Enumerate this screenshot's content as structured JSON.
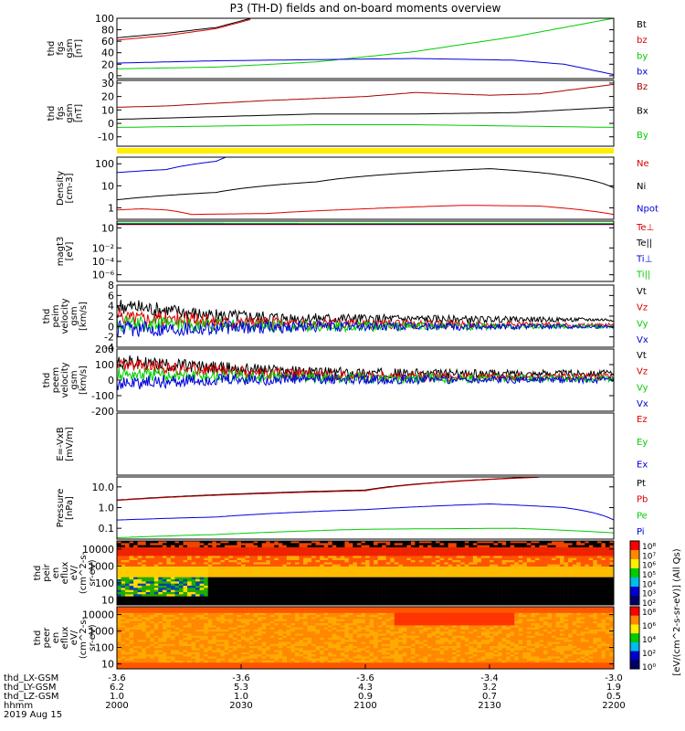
{
  "title": "P3 (TH-D) fields and on-board moments overview",
  "colors": {
    "black": "#000000",
    "red": "#dd0000",
    "green": "#00cc00",
    "blue": "#0000dd",
    "darkred": "#aa0000",
    "yellow": "#ffee00"
  },
  "chart_data": [
    {
      "type": "line",
      "ylabel": [
        "thd",
        "fgs",
        "gsm",
        "[nT]"
      ],
      "ylim": [
        -5,
        100
      ],
      "yticks": [
        0,
        20,
        40,
        60,
        80,
        100
      ],
      "log": false,
      "series": [
        {
          "name": "Bt",
          "color": "#000000",
          "x": [
            0,
            0.1,
            0.2,
            0.27,
            0.4,
            1.0
          ],
          "y": [
            66,
            74,
            84,
            100,
            null,
            null
          ]
        },
        {
          "name": "bz",
          "color": "#dd0000",
          "x": [
            0,
            0.1,
            0.2,
            0.27,
            0.4,
            1.0
          ],
          "y": [
            62,
            70,
            82,
            98,
            null,
            null
          ]
        },
        {
          "name": "by",
          "color": "#00cc00",
          "x": [
            0,
            0.2,
            0.4,
            0.6,
            0.8,
            1.0
          ],
          "y": [
            12,
            15,
            24,
            42,
            68,
            100
          ]
        },
        {
          "name": "bx",
          "color": "#0000dd",
          "x": [
            0,
            0.2,
            0.4,
            0.6,
            0.8,
            0.9,
            1.0
          ],
          "y": [
            22,
            26,
            28,
            30,
            27,
            20,
            2
          ]
        }
      ]
    },
    {
      "type": "line",
      "ylabel": [
        "thd",
        "fgs",
        "gsm",
        "[nT]"
      ],
      "ylim": [
        -17,
        32
      ],
      "yticks": [
        -10,
        0,
        10,
        20,
        30
      ],
      "log": false,
      "series": [
        {
          "name": "Bz",
          "color": "#aa0000",
          "x": [
            0,
            0.1,
            0.3,
            0.5,
            0.6,
            0.75,
            0.85,
            1.0
          ],
          "y": [
            12,
            13,
            17,
            20,
            23,
            21,
            22,
            29
          ]
        },
        {
          "name": "Bx",
          "color": "#000000",
          "x": [
            0,
            0.2,
            0.4,
            0.6,
            0.8,
            1.0
          ],
          "y": [
            3,
            5,
            7,
            7,
            8,
            12
          ]
        },
        {
          "name": "By",
          "color": "#00cc00",
          "x": [
            0,
            0.2,
            0.4,
            0.6,
            0.8,
            1.0
          ],
          "y": [
            -3,
            -2,
            -1,
            -1,
            -2,
            -3
          ]
        }
      ]
    },
    {
      "type": "line",
      "ylabel": [
        "Density",
        "[cm-3]"
      ],
      "ylim": [
        0.3,
        200
      ],
      "yticks": [
        1,
        10,
        100
      ],
      "log": true,
      "series": [
        {
          "name": "Ne",
          "color": "#dd0000",
          "x": [
            0,
            0.05,
            0.1,
            0.15,
            0.3,
            0.5,
            0.7,
            0.85,
            1.0
          ],
          "y": [
            0.8,
            0.9,
            0.8,
            0.5,
            0.55,
            0.9,
            1.3,
            1.2,
            0.5
          ]
        },
        {
          "name": "Ni",
          "color": "#000000",
          "x": [
            0,
            0.2,
            0.4,
            0.6,
            0.75,
            0.85,
            1.0
          ],
          "y": [
            2.3,
            5,
            15,
            40,
            60,
            40,
            8
          ]
        },
        {
          "name": "Npot",
          "color": "#0000dd",
          "x": [
            0,
            0.1,
            0.2,
            0.22
          ],
          "y": [
            40,
            55,
            130,
            200
          ]
        }
      ]
    },
    {
      "type": "line",
      "ylabel": [
        "magt3",
        "[eV]"
      ],
      "ylim": [
        1e-07,
        100
      ],
      "yticks": [
        10,
        0.01,
        0.0001,
        1e-06
      ],
      "ytick_labels": [
        "10",
        "10⁻²",
        "10⁻⁴",
        "10⁻⁶"
      ],
      "log": true,
      "series": [
        {
          "name": "Te⊥",
          "color": "#dd0000",
          "x": [
            0,
            0.5,
            1.0
          ],
          "y": [
            30,
            30,
            30
          ]
        },
        {
          "name": "Te||",
          "color": "#000000",
          "x": [
            0,
            0.5,
            1.0
          ],
          "y": [
            35,
            35,
            35
          ]
        },
        {
          "name": "Ti⊥",
          "color": "#0000dd",
          "x": [
            0,
            0.5,
            1.0
          ],
          "y": [
            45,
            40,
            40
          ]
        },
        {
          "name": "Ti||",
          "color": "#00cc00",
          "x": [
            0,
            0.5,
            1.0
          ],
          "y": [
            50,
            45,
            45
          ]
        }
      ]
    },
    {
      "type": "line",
      "ylabel": [
        "thd",
        "peim",
        "velocity",
        "gsm",
        "[km/s]"
      ],
      "ylim": [
        -4,
        8
      ],
      "yticks": [
        -4,
        -2,
        0,
        2,
        4,
        6,
        8
      ],
      "log": false,
      "noise": [
        1.6,
        0.3
      ],
      "series": [
        {
          "name": "Vt",
          "color": "#000000",
          "x": [
            0,
            0.2,
            0.4,
            1.0
          ],
          "y": [
            4,
            2,
            1.5,
            1.3
          ]
        },
        {
          "name": "Vz",
          "color": "#dd0000",
          "x": [
            0,
            0.2,
            0.4,
            1.0
          ],
          "y": [
            2,
            1,
            0.5,
            0.3
          ]
        },
        {
          "name": "Vy",
          "color": "#00cc00",
          "x": [
            0,
            0.2,
            0.4,
            1.0
          ],
          "y": [
            0.5,
            0.2,
            0,
            0
          ]
        },
        {
          "name": "Vx",
          "color": "#0000dd",
          "x": [
            0,
            0.2,
            0.4,
            1.0
          ],
          "y": [
            -0.5,
            -0.2,
            0,
            0
          ]
        }
      ]
    },
    {
      "type": "line",
      "ylabel": [
        "thd",
        "peem",
        "velocity",
        "gsm",
        "[km/s]"
      ],
      "ylim": [
        -200,
        200
      ],
      "yticks": [
        -200,
        -100,
        0,
        100,
        200
      ],
      "log": false,
      "noise": [
        45,
        20
      ],
      "series": [
        {
          "name": "Vt",
          "color": "#000000",
          "x": [
            0,
            0.2,
            0.4,
            0.7,
            1.0
          ],
          "y": [
            120,
            80,
            50,
            40,
            45
          ]
        },
        {
          "name": "Vz",
          "color": "#dd0000",
          "x": [
            0,
            0.2,
            0.4,
            0.7,
            1.0
          ],
          "y": [
            100,
            60,
            30,
            20,
            25
          ]
        },
        {
          "name": "Vy",
          "color": "#00cc00",
          "x": [
            0,
            0.2,
            0.4,
            0.7,
            1.0
          ],
          "y": [
            40,
            25,
            15,
            10,
            10
          ]
        },
        {
          "name": "Vx",
          "color": "#0000dd",
          "x": [
            0,
            0.2,
            0.4,
            0.7,
            1.0
          ],
          "y": [
            -20,
            0,
            5,
            5,
            0
          ]
        }
      ]
    },
    {
      "type": "line",
      "ylabel": [
        "E=-VxB",
        "[mV/m]"
      ],
      "ylim": [
        0,
        1
      ],
      "yticks": [],
      "log": false,
      "series": [
        {
          "name": "Ez",
          "color": "#dd0000",
          "x": [],
          "y": []
        },
        {
          "name": "Ey",
          "color": "#00cc00",
          "x": [],
          "y": []
        },
        {
          "name": "Ex",
          "color": "#0000dd",
          "x": [],
          "y": []
        }
      ]
    },
    {
      "type": "line",
      "ylabel": [
        "Pressure",
        "[nPa]"
      ],
      "ylim": [
        0.03,
        30
      ],
      "yticks": [
        0.1,
        1.0,
        10.0
      ],
      "ytick_labels": [
        "0.1",
        "1.0",
        "10.0"
      ],
      "log": true,
      "series": [
        {
          "name": "Pt",
          "color": "#000000",
          "x": [
            0,
            0.5,
            0.85
          ],
          "y": [
            2.3,
            7,
            30
          ]
        },
        {
          "name": "Pb",
          "color": "#dd0000",
          "x": [
            0,
            0.5,
            0.85
          ],
          "y": [
            2.2,
            6.5,
            29
          ]
        },
        {
          "name": "Pe",
          "color": "#00cc00",
          "x": [
            0,
            0.2,
            0.5,
            0.8,
            1.0
          ],
          "y": [
            0.035,
            0.05,
            0.09,
            0.1,
            0.06
          ]
        },
        {
          "name": "Pi",
          "color": "#0000dd",
          "x": [
            0,
            0.2,
            0.5,
            0.75,
            0.9,
            1.0
          ],
          "y": [
            0.25,
            0.35,
            0.8,
            1.5,
            1.0,
            0.25
          ]
        }
      ]
    },
    {
      "type": "heatmap",
      "ylabel": [
        "thd",
        "peir",
        "en",
        "eflux",
        "eV/",
        "(cm^2-s-",
        "sr-eV)"
      ],
      "ylim": [
        5,
        30000
      ],
      "yticks": [
        10,
        100,
        1000,
        10000
      ],
      "log": true
    },
    {
      "type": "heatmap",
      "ylabel": [
        "thd",
        "peer",
        "en",
        "eflux",
        "eV/",
        "(cm^2-s-",
        "sr-eV)"
      ],
      "ylim": [
        5,
        30000
      ],
      "yticks": [
        10,
        100,
        1000,
        10000
      ],
      "log": true
    }
  ],
  "colorbars": [
    {
      "labels": [
        "10⁸",
        "10⁷",
        "10⁶",
        "10⁵",
        "10⁴",
        "10³",
        "10²"
      ],
      "title": "[eV/(cm^2-s-sr-eV)] (All Qs)"
    },
    {
      "labels": [
        "10⁸",
        "10⁶",
        "10⁴",
        "10²",
        "10⁰"
      ],
      "title": "[eV/(cm^2-s-sr-eV)] (All Qs)"
    }
  ],
  "xaxis": {
    "rows": [
      {
        "label": "thd_LX-GSM",
        "values": [
          "-3.6",
          "-3.6",
          "-3.6",
          "-3.4",
          "-3.0"
        ]
      },
      {
        "label": "thd_LY-GSM",
        "values": [
          "6.2",
          "5.3",
          "4.3",
          "3.2",
          "1.9"
        ]
      },
      {
        "label": "thd_LZ-GSM",
        "values": [
          "1.0",
          "1.0",
          "0.9",
          "0.7",
          "0.5"
        ]
      },
      {
        "label": "hhmm",
        "values": [
          "2000",
          "2030",
          "2100",
          "2130",
          "2200"
        ]
      }
    ],
    "date": "2019 Aug 15"
  }
}
